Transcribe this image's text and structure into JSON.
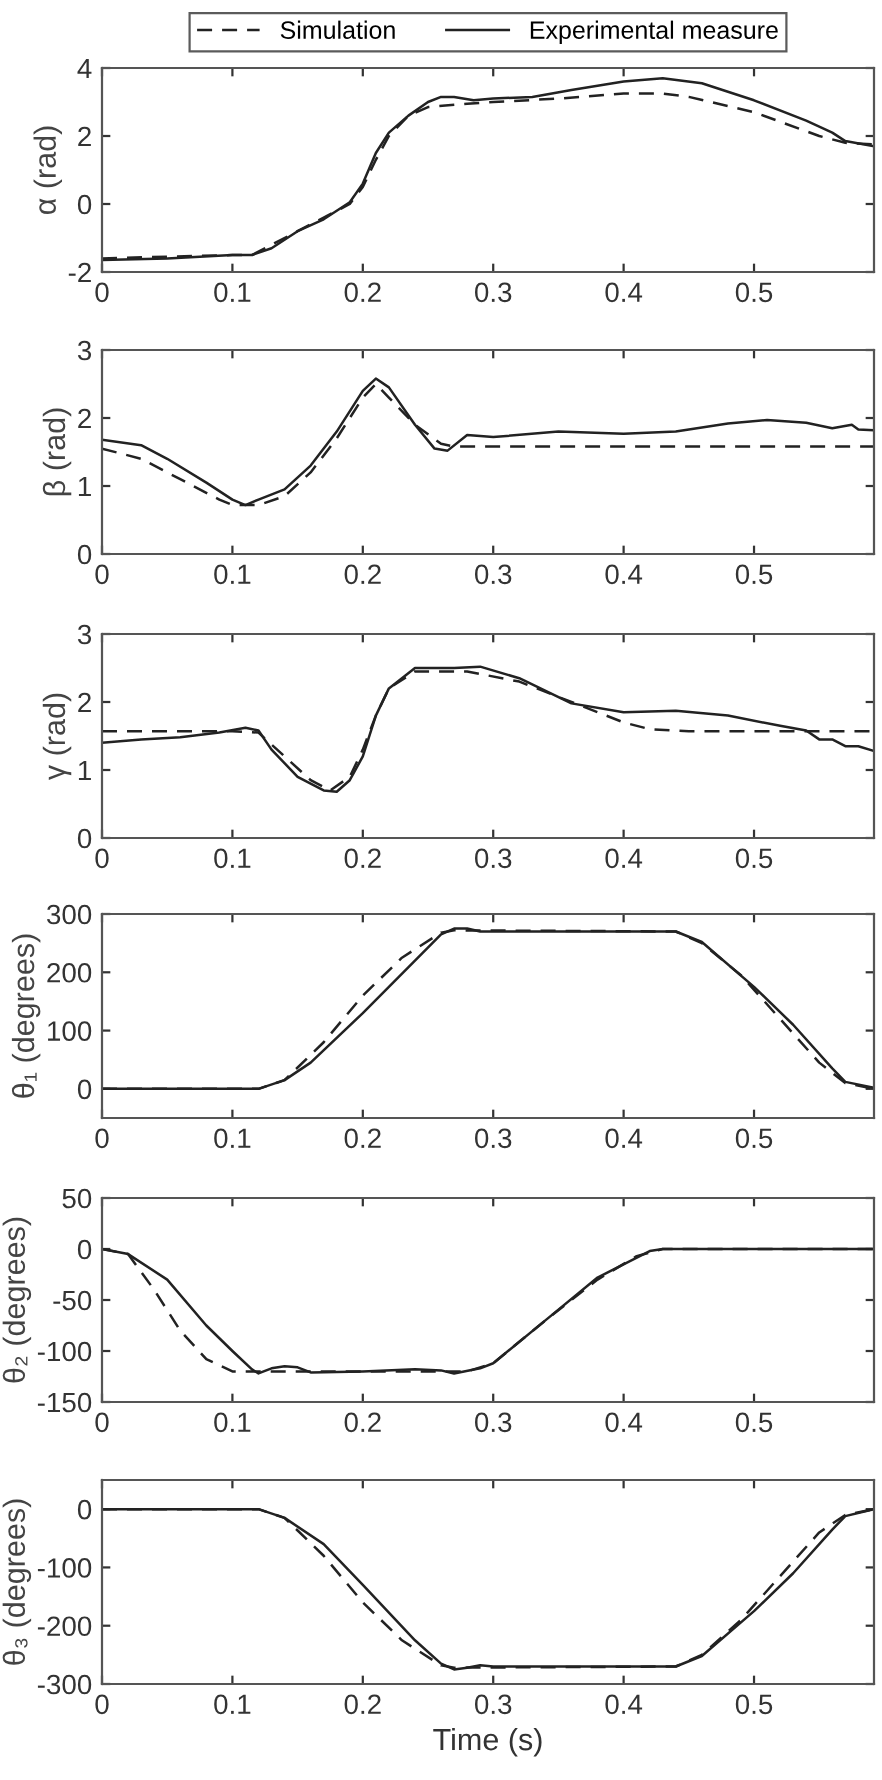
{
  "chart_data": [
    {
      "type": "line",
      "ylabel": "α (rad)",
      "xlim": [
        0,
        0.592
      ],
      "xticks": [
        0,
        0.1,
        0.2,
        0.3,
        0.4,
        0.5
      ],
      "ylim": [
        -2,
        4
      ],
      "yticks": [
        -2,
        0,
        2,
        4
      ],
      "grid": false,
      "legend": "top",
      "marker": "none",
      "series": [
        {
          "name": "Simulation",
          "color": "#222222",
          "line_style": "dashed",
          "x": [
            0,
            0.05,
            0.1,
            0.115,
            0.13,
            0.15,
            0.17,
            0.19,
            0.2,
            0.21,
            0.22,
            0.235,
            0.25,
            0.28,
            0.3,
            0.35,
            0.4,
            0.43,
            0.45,
            0.5,
            0.55,
            0.57,
            0.592
          ],
          "values": [
            -1.6,
            -1.55,
            -1.5,
            -1.5,
            -1.2,
            -0.8,
            -0.4,
            0.0,
            0.5,
            1.3,
            2.0,
            2.6,
            2.85,
            2.95,
            3.0,
            3.1,
            3.25,
            3.25,
            3.15,
            2.7,
            2.0,
            1.8,
            1.75
          ]
        },
        {
          "name": "Experimental measure",
          "color": "#222222",
          "line_style": "solid",
          "x": [
            0,
            0.05,
            0.1,
            0.115,
            0.13,
            0.15,
            0.17,
            0.19,
            0.2,
            0.21,
            0.22,
            0.235,
            0.25,
            0.26,
            0.27,
            0.285,
            0.3,
            0.33,
            0.36,
            0.4,
            0.43,
            0.46,
            0.5,
            0.54,
            0.56,
            0.57,
            0.592
          ],
          "values": [
            -1.65,
            -1.6,
            -1.5,
            -1.5,
            -1.3,
            -0.8,
            -0.45,
            0.05,
            0.6,
            1.5,
            2.1,
            2.6,
            3.0,
            3.15,
            3.15,
            3.05,
            3.1,
            3.15,
            3.35,
            3.6,
            3.7,
            3.55,
            3.05,
            2.45,
            2.1,
            1.85,
            1.7
          ]
        }
      ]
    },
    {
      "type": "line",
      "ylabel": "β (rad)",
      "xlim": [
        0,
        0.592
      ],
      "xticks": [
        0,
        0.1,
        0.2,
        0.3,
        0.4,
        0.5
      ],
      "ylim": [
        0,
        3
      ],
      "yticks": [
        0,
        1,
        2,
        3
      ],
      "grid": false,
      "marker": "none",
      "series": [
        {
          "color": "#222222",
          "line_style": "dashed",
          "x": [
            0,
            0.03,
            0.06,
            0.09,
            0.1,
            0.12,
            0.14,
            0.16,
            0.18,
            0.2,
            0.21,
            0.22,
            0.24,
            0.26,
            0.27,
            0.592
          ],
          "values": [
            1.55,
            1.4,
            1.1,
            0.8,
            0.72,
            0.72,
            0.85,
            1.2,
            1.7,
            2.3,
            2.5,
            2.3,
            1.9,
            1.62,
            1.58,
            1.58
          ]
        },
        {
          "color": "#222222",
          "line_style": "solid",
          "x": [
            0,
            0.03,
            0.05,
            0.08,
            0.1,
            0.11,
            0.12,
            0.14,
            0.16,
            0.18,
            0.2,
            0.21,
            0.22,
            0.24,
            0.255,
            0.265,
            0.28,
            0.3,
            0.35,
            0.4,
            0.44,
            0.48,
            0.51,
            0.54,
            0.56,
            0.575,
            0.58,
            0.592
          ],
          "values": [
            1.68,
            1.6,
            1.4,
            1.05,
            0.8,
            0.72,
            0.8,
            0.95,
            1.3,
            1.8,
            2.4,
            2.58,
            2.45,
            1.9,
            1.55,
            1.52,
            1.75,
            1.72,
            1.8,
            1.77,
            1.8,
            1.92,
            1.97,
            1.93,
            1.85,
            1.9,
            1.83,
            1.82
          ]
        }
      ]
    },
    {
      "type": "line",
      "ylabel": "γ (rad)",
      "xlim": [
        0,
        0.592
      ],
      "xticks": [
        0,
        0.1,
        0.2,
        0.3,
        0.4,
        0.5
      ],
      "ylim": [
        0,
        3
      ],
      "yticks": [
        0,
        1,
        2,
        3
      ],
      "grid": false,
      "marker": "none",
      "series": [
        {
          "color": "#222222",
          "line_style": "dashed",
          "x": [
            0,
            0.1,
            0.12,
            0.14,
            0.16,
            0.175,
            0.19,
            0.2,
            0.21,
            0.22,
            0.24,
            0.28,
            0.32,
            0.36,
            0.4,
            0.42,
            0.45,
            0.592
          ],
          "values": [
            1.57,
            1.57,
            1.55,
            1.2,
            0.85,
            0.7,
            0.9,
            1.3,
            1.8,
            2.2,
            2.45,
            2.45,
            2.3,
            2.0,
            1.7,
            1.6,
            1.57,
            1.57
          ]
        },
        {
          "color": "#222222",
          "line_style": "solid",
          "x": [
            0,
            0.03,
            0.06,
            0.09,
            0.11,
            0.12,
            0.13,
            0.15,
            0.17,
            0.18,
            0.19,
            0.2,
            0.21,
            0.22,
            0.24,
            0.27,
            0.29,
            0.32,
            0.36,
            0.4,
            0.44,
            0.48,
            0.52,
            0.54,
            0.55,
            0.56,
            0.57,
            0.58,
            0.592
          ],
          "values": [
            1.4,
            1.45,
            1.48,
            1.55,
            1.62,
            1.58,
            1.3,
            0.9,
            0.7,
            0.68,
            0.85,
            1.2,
            1.8,
            2.2,
            2.5,
            2.5,
            2.52,
            2.35,
            1.98,
            1.85,
            1.87,
            1.8,
            1.65,
            1.58,
            1.45,
            1.45,
            1.35,
            1.35,
            1.28
          ]
        }
      ]
    },
    {
      "type": "line",
      "ylabel": "θ₁ (degrees)",
      "xlim": [
        0,
        0.592
      ],
      "xticks": [
        0,
        0.1,
        0.2,
        0.3,
        0.4,
        0.5
      ],
      "ylim": [
        -50,
        300
      ],
      "yticks": [
        0,
        100,
        200,
        300
      ],
      "grid": false,
      "marker": "none",
      "series": [
        {
          "color": "#222222",
          "line_style": "dashed",
          "x": [
            0,
            0.12,
            0.14,
            0.17,
            0.2,
            0.23,
            0.26,
            0.27,
            0.44,
            0.46,
            0.49,
            0.52,
            0.55,
            0.57,
            0.592
          ],
          "values": [
            0,
            0,
            15,
            80,
            160,
            225,
            268,
            272,
            270,
            250,
            195,
            120,
            45,
            10,
            0
          ]
        },
        {
          "color": "#222222",
          "line_style": "solid",
          "x": [
            0,
            0.12,
            0.14,
            0.16,
            0.2,
            0.24,
            0.26,
            0.27,
            0.28,
            0.29,
            0.44,
            0.46,
            0.5,
            0.53,
            0.56,
            0.57,
            0.592
          ],
          "values": [
            0,
            0,
            15,
            45,
            130,
            220,
            265,
            275,
            275,
            270,
            270,
            252,
            175,
            110,
            35,
            12,
            2
          ]
        }
      ]
    },
    {
      "type": "line",
      "ylabel": "θ₂ (degrees)",
      "xlim": [
        0,
        0.592
      ],
      "xticks": [
        0,
        0.1,
        0.2,
        0.3,
        0.4,
        0.5
      ],
      "ylim": [
        -150,
        50
      ],
      "yticks": [
        -150,
        -100,
        -50,
        0,
        50
      ],
      "grid": false,
      "marker": "none",
      "series": [
        {
          "color": "#222222",
          "line_style": "dashed",
          "x": [
            0,
            0.02,
            0.04,
            0.06,
            0.08,
            0.1,
            0.28,
            0.3,
            0.34,
            0.38,
            0.41,
            0.43,
            0.592
          ],
          "values": [
            0,
            -5,
            -40,
            -80,
            -108,
            -120,
            -120,
            -112,
            -70,
            -30,
            -7,
            0,
            0
          ]
        },
        {
          "color": "#222222",
          "line_style": "solid",
          "x": [
            0,
            0.02,
            0.05,
            0.08,
            0.1,
            0.115,
            0.12,
            0.13,
            0.14,
            0.15,
            0.16,
            0.2,
            0.24,
            0.26,
            0.27,
            0.29,
            0.3,
            0.34,
            0.38,
            0.42,
            0.43,
            0.592
          ],
          "values": [
            0,
            -5,
            -30,
            -75,
            -100,
            -118,
            -122,
            -117,
            -115,
            -116,
            -121,
            -120,
            -118,
            -119,
            -122,
            -117,
            -112,
            -70,
            -28,
            -2,
            0,
            0
          ]
        }
      ]
    },
    {
      "type": "line",
      "ylabel": "θ₃ (degrees)",
      "xlabel": "Time (s)",
      "xlim": [
        0,
        0.592
      ],
      "xticks": [
        0,
        0.1,
        0.2,
        0.3,
        0.4,
        0.5
      ],
      "ylim": [
        -300,
        50
      ],
      "yticks": [
        -300,
        -200,
        -100,
        0
      ],
      "grid": false,
      "marker": "none",
      "series": [
        {
          "color": "#222222",
          "line_style": "dashed",
          "x": [
            0,
            0.12,
            0.14,
            0.17,
            0.2,
            0.23,
            0.26,
            0.27,
            0.44,
            0.46,
            0.49,
            0.52,
            0.55,
            0.57,
            0.592
          ],
          "values": [
            0,
            0,
            -15,
            -80,
            -160,
            -225,
            -268,
            -272,
            -270,
            -250,
            -190,
            -115,
            -40,
            -10,
            0
          ]
        },
        {
          "color": "#222222",
          "line_style": "solid",
          "x": [
            0,
            0.12,
            0.14,
            0.17,
            0.2,
            0.24,
            0.26,
            0.27,
            0.28,
            0.29,
            0.3,
            0.44,
            0.46,
            0.5,
            0.53,
            0.56,
            0.57,
            0.592
          ],
          "values": [
            0,
            0,
            -15,
            -60,
            -130,
            -225,
            -265,
            -275,
            -272,
            -268,
            -270,
            -270,
            -252,
            -175,
            -110,
            -35,
            -12,
            0
          ]
        }
      ]
    }
  ]
}
